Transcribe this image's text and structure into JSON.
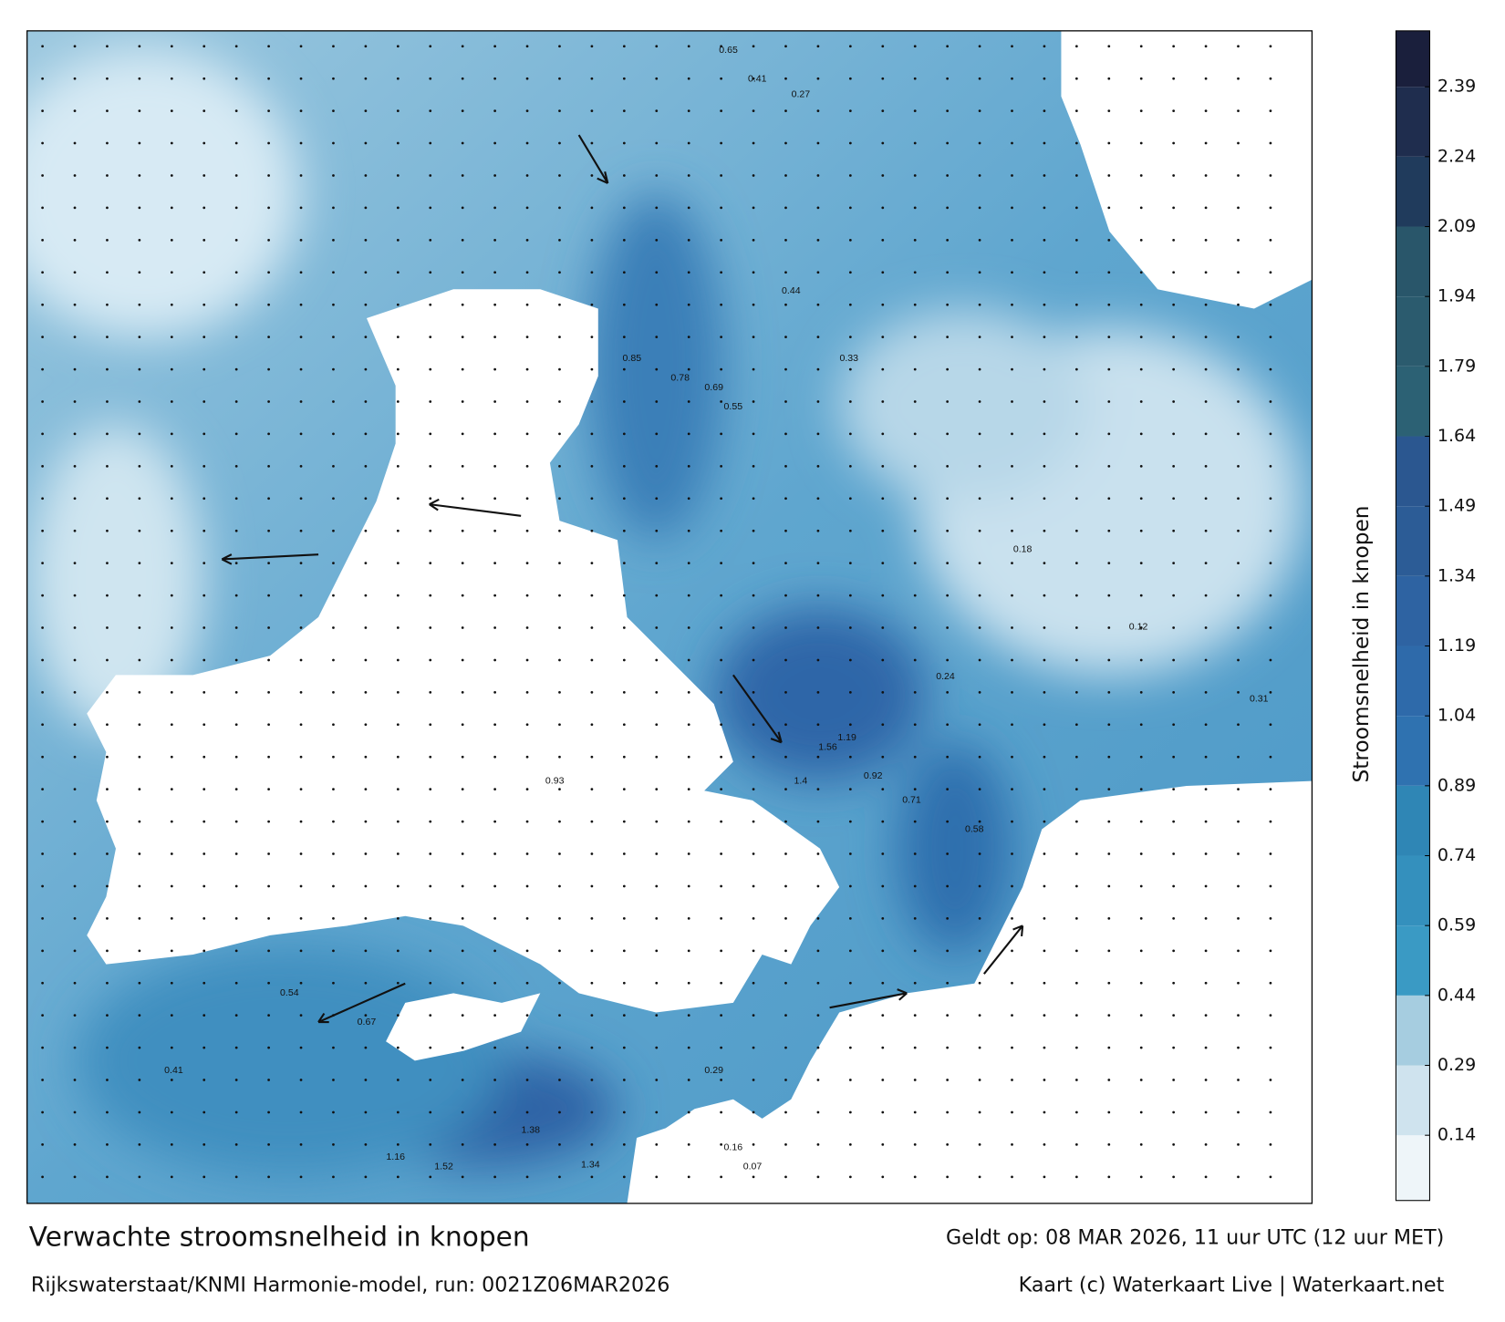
{
  "title": "Verwachte stroomsnelheid in knopen",
  "subtitle": "Rijkswaterstaat/KNMI Harmonie-model, run: 0021Z06MAR2026",
  "valid_time": "Geldt op: 08 MAR 2026, 11 uur UTC (12 uur MET)",
  "credit": "Kaart (c) Waterkaart Live | Waterkaart.net",
  "colorbar": {
    "label": "Stroomsnelheid in knopen",
    "lim": [
      0,
      2.51
    ],
    "ticks": [
      0.14,
      0.29,
      0.44,
      0.59,
      0.74,
      0.89,
      1.04,
      1.19,
      1.34,
      1.49,
      1.64,
      1.79,
      1.94,
      2.09,
      2.24,
      2.39
    ],
    "colors": [
      "#eef5f9",
      "#cfe3ee",
      "#a6cde0",
      "#3a9ac4",
      "#3490bd",
      "#2f86b5",
      "#2f72b0",
      "#2e6aaa",
      "#2e63a2",
      "#2c5c96",
      "#2b5790",
      "#2c6174",
      "#2b5b6e",
      "#29566a",
      "#203b5c",
      "#1f2d4e",
      "#1a1f3c"
    ]
  },
  "map_labels": [
    "0.65",
    "0.41",
    "0.27",
    "0.85",
    "0.78",
    "0.69",
    "0.55",
    "0.44",
    "0.33",
    "0.24",
    "0.18",
    "0.12",
    "1.4",
    "1.56",
    "1.19",
    "0.92",
    "0.71",
    "0.58",
    "1.52",
    "1.34",
    "1.38",
    "0.67",
    "0.54",
    "0.41",
    "0.29",
    "0.16",
    "0.07",
    "0.93",
    "1.16",
    "0.31"
  ]
}
